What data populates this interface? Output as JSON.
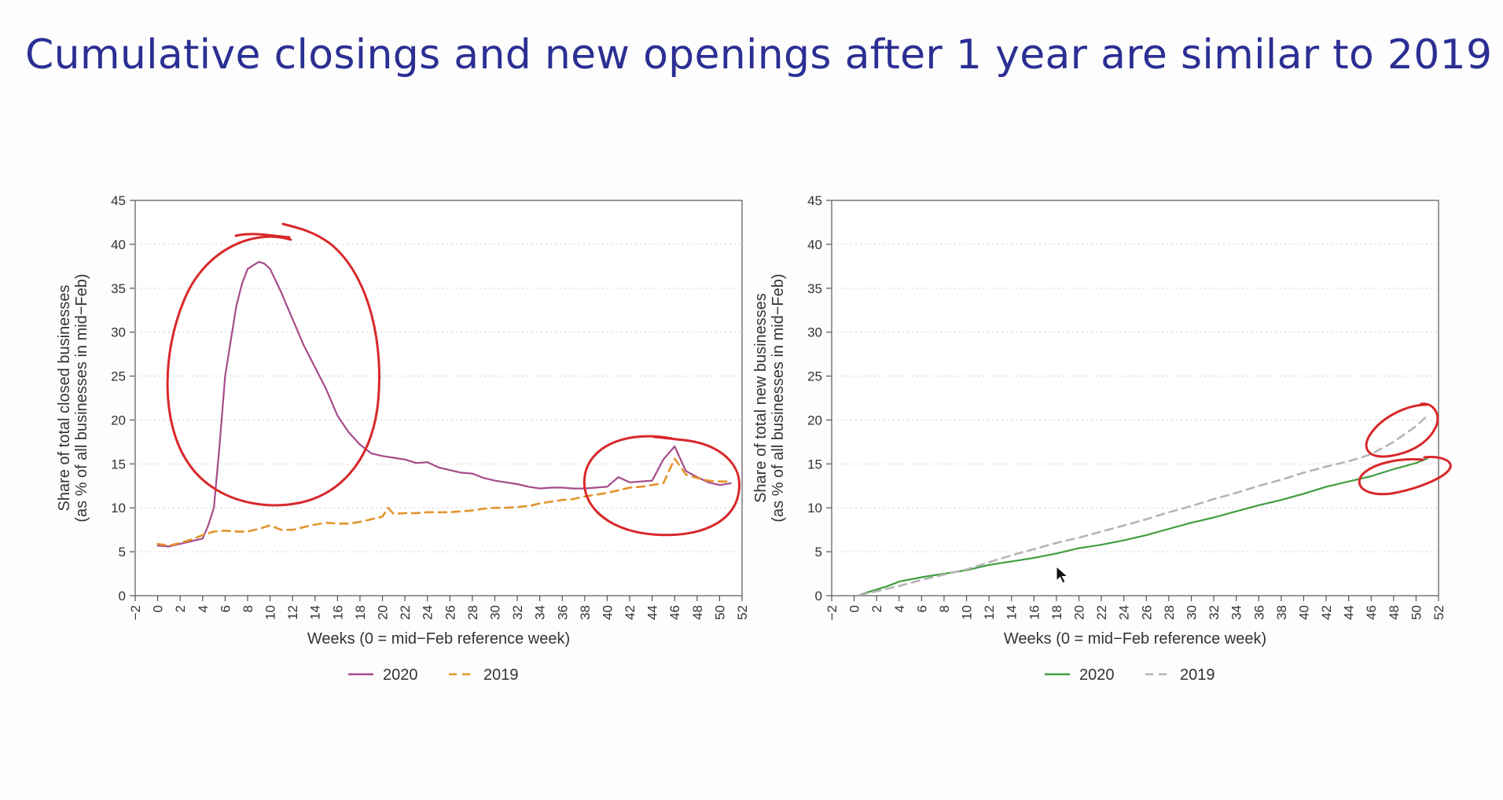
{
  "slide": {
    "title": "Cumulative closings and new openings after 1 year are similar to 2019"
  },
  "chart_data": [
    {
      "type": "line",
      "ylabel_line1": "Share of total closed businesses",
      "ylabel_line2": "(as % of all businesses in mid−Feb)",
      "xlabel": "Weeks (0 = mid−Feb reference week)",
      "xlim": [
        -2,
        52
      ],
      "ylim": [
        0,
        45
      ],
      "xticks": [
        "−2",
        "0",
        "2",
        "4",
        "6",
        "8",
        "10",
        "12",
        "14",
        "16",
        "18",
        "20",
        "22",
        "24",
        "26",
        "28",
        "30",
        "32",
        "34",
        "36",
        "38",
        "40",
        "42",
        "44",
        "46",
        "48",
        "50",
        "52"
      ],
      "yticks": [
        "0",
        "5",
        "10",
        "15",
        "20",
        "25",
        "30",
        "35",
        "40",
        "45"
      ],
      "grid": "horizontal dotted",
      "legend_position": "bottom-center",
      "series": [
        {
          "name": "2020",
          "color": "#a54b8a",
          "dash": "solid",
          "x": [
            0,
            1,
            2,
            3,
            4,
            4.5,
            5,
            5.5,
            6,
            6.5,
            7,
            7.5,
            8,
            8.5,
            9,
            9.5,
            10,
            11,
            12,
            13,
            14,
            15,
            16,
            17,
            18,
            19,
            20,
            21,
            22,
            23,
            24,
            25,
            26,
            27,
            28,
            29,
            30,
            31,
            32,
            33,
            34,
            35,
            36,
            37,
            38,
            39,
            40,
            41,
            42,
            43,
            44,
            45,
            46,
            47,
            48,
            49,
            50,
            51
          ],
          "y": [
            5.7,
            5.6,
            5.9,
            6.2,
            6.5,
            8,
            10,
            17,
            25,
            29,
            33,
            35.5,
            37.2,
            37.6,
            38,
            37.8,
            37.2,
            34.5,
            31.5,
            28.5,
            26,
            23.5,
            20.5,
            18.6,
            17.2,
            16.2,
            15.9,
            15.7,
            15.5,
            15.1,
            15.2,
            14.6,
            14.3,
            14.0,
            13.9,
            13.4,
            13.1,
            12.9,
            12.7,
            12.4,
            12.2,
            12.3,
            12.3,
            12.2,
            12.2,
            12.3,
            12.4,
            13.5,
            12.9,
            13.0,
            13.1,
            15.5,
            17.0,
            14.2,
            13.5,
            12.9,
            12.6,
            12.8
          ]
        },
        {
          "name": "2019",
          "color": "#e2942c",
          "dash": "dashed",
          "x": [
            0,
            1,
            2,
            3,
            4,
            5,
            6,
            7,
            8,
            9,
            10,
            11,
            12,
            13,
            14,
            15,
            16,
            17,
            18,
            19,
            20,
            20.5,
            21,
            22,
            23,
            24,
            25,
            26,
            27,
            28,
            29,
            30,
            31,
            32,
            33,
            34,
            35,
            36,
            37,
            38,
            39,
            40,
            41,
            42,
            43,
            44,
            45,
            46,
            47,
            48,
            49,
            50,
            51
          ],
          "y": [
            5.9,
            5.7,
            6.0,
            6.4,
            6.9,
            7.3,
            7.4,
            7.3,
            7.3,
            7.6,
            8.0,
            7.5,
            7.5,
            7.8,
            8.1,
            8.3,
            8.2,
            8.2,
            8.4,
            8.7,
            9.0,
            10.0,
            9.3,
            9.4,
            9.4,
            9.5,
            9.5,
            9.5,
            9.6,
            9.7,
            9.9,
            10.0,
            10.0,
            10.1,
            10.2,
            10.5,
            10.7,
            10.9,
            11.0,
            11.3,
            11.5,
            11.7,
            12.0,
            12.3,
            12.4,
            12.6,
            12.8,
            15.6,
            13.8,
            13.4,
            13.1,
            13.0,
            13.0
          ]
        }
      ]
    },
    {
      "type": "line",
      "ylabel_line1": "Share of total new businesses",
      "ylabel_line2": "(as % of all businesses in mid−Feb)",
      "xlabel": "Weeks (0 = mid−Feb reference week)",
      "xlim": [
        -2,
        52
      ],
      "ylim": [
        0,
        45
      ],
      "xticks": [
        "−2",
        "0",
        "2",
        "4",
        "6",
        "8",
        "10",
        "12",
        "14",
        "16",
        "18",
        "20",
        "22",
        "24",
        "26",
        "28",
        "30",
        "32",
        "34",
        "36",
        "38",
        "40",
        "42",
        "44",
        "46",
        "48",
        "50",
        "52"
      ],
      "yticks": [
        "0",
        "5",
        "10",
        "15",
        "20",
        "25",
        "30",
        "35",
        "40",
        "45"
      ],
      "grid": "horizontal dotted",
      "legend_position": "bottom-center",
      "series": [
        {
          "name": "2020",
          "color": "#3f9e3f",
          "dash": "solid",
          "x": [
            0.5,
            1,
            2,
            3,
            4,
            6,
            8,
            10,
            12,
            14,
            16,
            18,
            20,
            22,
            24,
            26,
            28,
            30,
            32,
            34,
            36,
            38,
            40,
            42,
            44,
            46,
            48,
            50,
            51
          ],
          "y": [
            0.1,
            0.3,
            0.7,
            1.1,
            1.6,
            2.1,
            2.5,
            2.9,
            3.5,
            3.9,
            4.3,
            4.8,
            5.4,
            5.8,
            6.3,
            6.9,
            7.6,
            8.3,
            8.9,
            9.6,
            10.3,
            10.9,
            11.6,
            12.4,
            13.0,
            13.6,
            14.4,
            15.1,
            15.6
          ]
        },
        {
          "name": "2019",
          "color": "#b5b5b5",
          "dash": "dashed",
          "x": [
            0.5,
            2,
            4,
            6,
            8,
            10,
            12,
            14,
            16,
            18,
            20,
            22,
            24,
            26,
            28,
            30,
            32,
            34,
            36,
            38,
            40,
            42,
            44,
            46,
            48,
            50,
            51
          ],
          "y": [
            0.1,
            0.5,
            1.1,
            1.8,
            2.4,
            3.0,
            3.8,
            4.6,
            5.3,
            6.0,
            6.6,
            7.3,
            8.0,
            8.7,
            9.5,
            10.2,
            11.0,
            11.7,
            12.5,
            13.2,
            14.0,
            14.7,
            15.3,
            16.1,
            17.5,
            19.3,
            20.5
          ]
        }
      ]
    }
  ]
}
